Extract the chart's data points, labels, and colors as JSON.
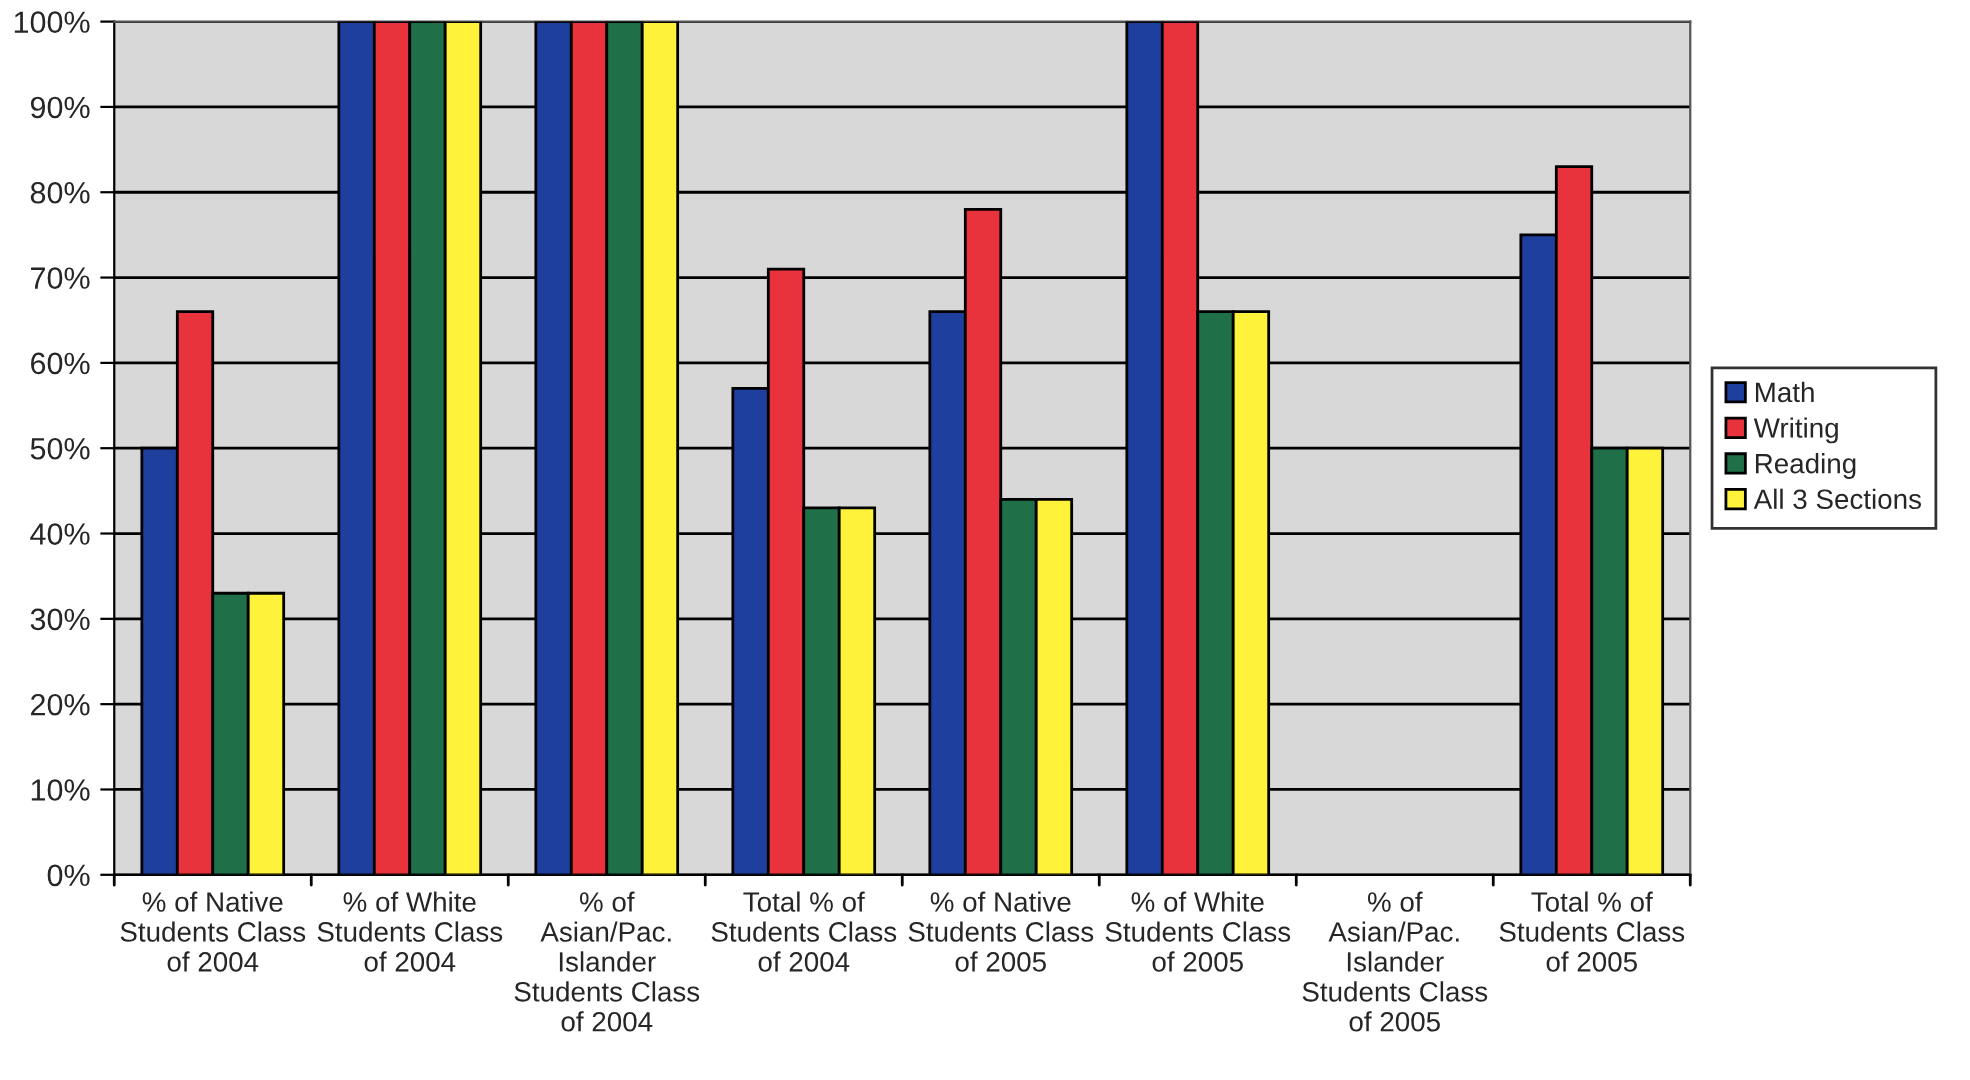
{
  "chart_data": {
    "type": "bar",
    "categories": [
      "% of Native\nStudents Class\nof 2004",
      "% of White\nStudents Class\nof 2004",
      "% of\nAsian/Pac.\nIslander\nStudents Class\nof 2004",
      "Total % of\nStudents Class\nof 2004",
      "% of Native\nStudents Class\nof 2005",
      "% of White\nStudents Class\nof 2005",
      "% of\nAsian/Pac.\nIslander\nStudents Class\nof 2005",
      "Total % of\nStudents Class\nof 2005"
    ],
    "series": [
      {
        "name": "Math",
        "color": "#1f3f9f",
        "values": [
          50,
          100,
          100,
          57,
          66,
          100,
          null,
          75
        ]
      },
      {
        "name": "Writing",
        "color": "#e8333c",
        "values": [
          66,
          100,
          100,
          71,
          78,
          100,
          null,
          83
        ]
      },
      {
        "name": "Reading",
        "color": "#1f7048",
        "values": [
          33,
          100,
          100,
          43,
          44,
          66,
          null,
          50
        ]
      },
      {
        "name": "All 3 Sections",
        "color": "#fff23a",
        "values": [
          33,
          100,
          100,
          43,
          44,
          66,
          null,
          50
        ]
      }
    ],
    "ylim": [
      0,
      100
    ],
    "yticks": [
      {
        "value": 0,
        "label": "0%"
      },
      {
        "value": 10,
        "label": "10%"
      },
      {
        "value": 20,
        "label": "20%"
      },
      {
        "value": 30,
        "label": "30%"
      },
      {
        "value": 40,
        "label": "40%"
      },
      {
        "value": 50,
        "label": "50%"
      },
      {
        "value": 60,
        "label": "60%"
      },
      {
        "value": 70,
        "label": "70%"
      },
      {
        "value": 80,
        "label": "80%"
      },
      {
        "value": 90,
        "label": "90%"
      },
      {
        "value": 100,
        "label": "100%"
      }
    ],
    "grid": "y",
    "legend": "right"
  }
}
